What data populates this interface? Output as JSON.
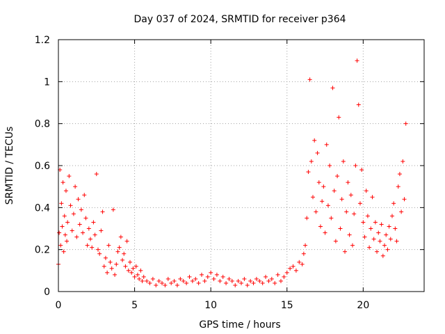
{
  "chart_data": {
    "type": "scatter",
    "title": "Day 037 of 2024, SRMTID for receiver p364",
    "xlabel": "GPS time / hours",
    "ylabel": "SRMTID / TECUs",
    "xlim": [
      0,
      24
    ],
    "ylim": [
      0,
      1.2
    ],
    "xticks": [
      0,
      5,
      10,
      15,
      20
    ],
    "yticks": [
      0,
      0.2,
      0.4,
      0.6,
      0.8,
      1,
      1.2
    ],
    "ytick_labels": [
      "0",
      "0.2",
      "0.4",
      "0.6",
      "0.8",
      "1",
      "1.2"
    ],
    "grid": true,
    "marker": "+",
    "color": "#ff0000",
    "series": [
      {
        "name": "SRMTID",
        "x": [
          0.0,
          0.05,
          0.1,
          0.15,
          0.2,
          0.25,
          0.3,
          0.35,
          0.4,
          0.45,
          0.5,
          0.55,
          0.6,
          0.7,
          0.8,
          0.9,
          1.0,
          1.1,
          1.2,
          1.3,
          1.4,
          1.5,
          1.6,
          1.7,
          1.8,
          1.9,
          2.0,
          2.1,
          2.2,
          2.3,
          2.4,
          2.5,
          2.6,
          2.7,
          2.8,
          2.9,
          3.0,
          3.1,
          3.2,
          3.3,
          3.4,
          3.5,
          3.6,
          3.7,
          3.8,
          3.9,
          4.0,
          4.1,
          4.2,
          4.3,
          4.4,
          4.5,
          4.6,
          4.7,
          4.8,
          4.9,
          5.0,
          5.1,
          5.2,
          5.3,
          5.4,
          5.5,
          5.6,
          5.8,
          6.0,
          6.2,
          6.4,
          6.6,
          6.8,
          7.0,
          7.2,
          7.4,
          7.6,
          7.8,
          8.0,
          8.2,
          8.4,
          8.6,
          8.8,
          9.0,
          9.2,
          9.4,
          9.6,
          9.8,
          10.0,
          10.2,
          10.4,
          10.6,
          10.8,
          11.0,
          11.2,
          11.4,
          11.6,
          11.8,
          12.0,
          12.2,
          12.4,
          12.6,
          12.8,
          13.0,
          13.2,
          13.4,
          13.6,
          13.8,
          14.0,
          14.2,
          14.4,
          14.6,
          14.8,
          15.0,
          15.2,
          15.4,
          15.6,
          15.8,
          16.0,
          16.1,
          16.2,
          16.3,
          16.4,
          16.5,
          16.6,
          16.7,
          16.8,
          16.9,
          17.0,
          17.1,
          17.2,
          17.3,
          17.4,
          17.5,
          17.6,
          17.7,
          17.8,
          17.9,
          18.0,
          18.1,
          18.2,
          18.3,
          18.4,
          18.5,
          18.6,
          18.7,
          18.8,
          18.9,
          19.0,
          19.1,
          19.2,
          19.3,
          19.4,
          19.5,
          19.6,
          19.7,
          19.8,
          19.9,
          20.0,
          20.1,
          20.2,
          20.3,
          20.4,
          20.5,
          20.6,
          20.7,
          20.8,
          20.9,
          21.0,
          21.1,
          21.2,
          21.3,
          21.4,
          21.5,
          21.6,
          21.7,
          21.8,
          21.9,
          22.0,
          22.1,
          22.2,
          22.3,
          22.4,
          22.5,
          22.6,
          22.7,
          22.8
        ],
        "y": [
          0.13,
          0.28,
          0.58,
          0.22,
          0.42,
          0.31,
          0.52,
          0.19,
          0.36,
          0.27,
          0.48,
          0.24,
          0.33,
          0.55,
          0.41,
          0.29,
          0.37,
          0.5,
          0.26,
          0.44,
          0.32,
          0.39,
          0.28,
          0.46,
          0.35,
          0.22,
          0.3,
          0.25,
          0.21,
          0.33,
          0.27,
          0.56,
          0.2,
          0.18,
          0.29,
          0.38,
          0.12,
          0.16,
          0.09,
          0.22,
          0.14,
          0.11,
          0.39,
          0.08,
          0.13,
          0.19,
          0.21,
          0.26,
          0.15,
          0.18,
          0.12,
          0.24,
          0.1,
          0.14,
          0.09,
          0.11,
          0.07,
          0.12,
          0.08,
          0.06,
          0.1,
          0.05,
          0.07,
          0.05,
          0.04,
          0.06,
          0.03,
          0.05,
          0.04,
          0.03,
          0.06,
          0.04,
          0.05,
          0.03,
          0.06,
          0.05,
          0.04,
          0.07,
          0.05,
          0.06,
          0.04,
          0.08,
          0.05,
          0.07,
          0.09,
          0.06,
          0.08,
          0.05,
          0.07,
          0.04,
          0.06,
          0.05,
          0.03,
          0.05,
          0.04,
          0.06,
          0.03,
          0.05,
          0.04,
          0.06,
          0.05,
          0.04,
          0.07,
          0.05,
          0.06,
          0.04,
          0.08,
          0.05,
          0.07,
          0.09,
          0.11,
          0.12,
          0.1,
          0.14,
          0.13,
          0.18,
          0.22,
          0.35,
          0.57,
          1.01,
          0.62,
          0.45,
          0.72,
          0.38,
          0.66,
          0.52,
          0.31,
          0.43,
          0.5,
          0.28,
          0.7,
          0.41,
          0.6,
          0.35,
          0.97,
          0.48,
          0.24,
          0.55,
          0.83,
          0.3,
          0.44,
          0.62,
          0.19,
          0.38,
          0.52,
          0.27,
          0.46,
          0.22,
          0.37,
          0.6,
          1.1,
          0.89,
          0.42,
          0.58,
          0.33,
          0.26,
          0.48,
          0.36,
          0.21,
          0.3,
          0.45,
          0.25,
          0.33,
          0.19,
          0.28,
          0.24,
          0.32,
          0.17,
          0.22,
          0.27,
          0.2,
          0.31,
          0.25,
          0.36,
          0.42,
          0.3,
          0.24,
          0.5,
          0.56,
          0.38,
          0.62,
          0.44,
          0.8
        ]
      }
    ]
  }
}
